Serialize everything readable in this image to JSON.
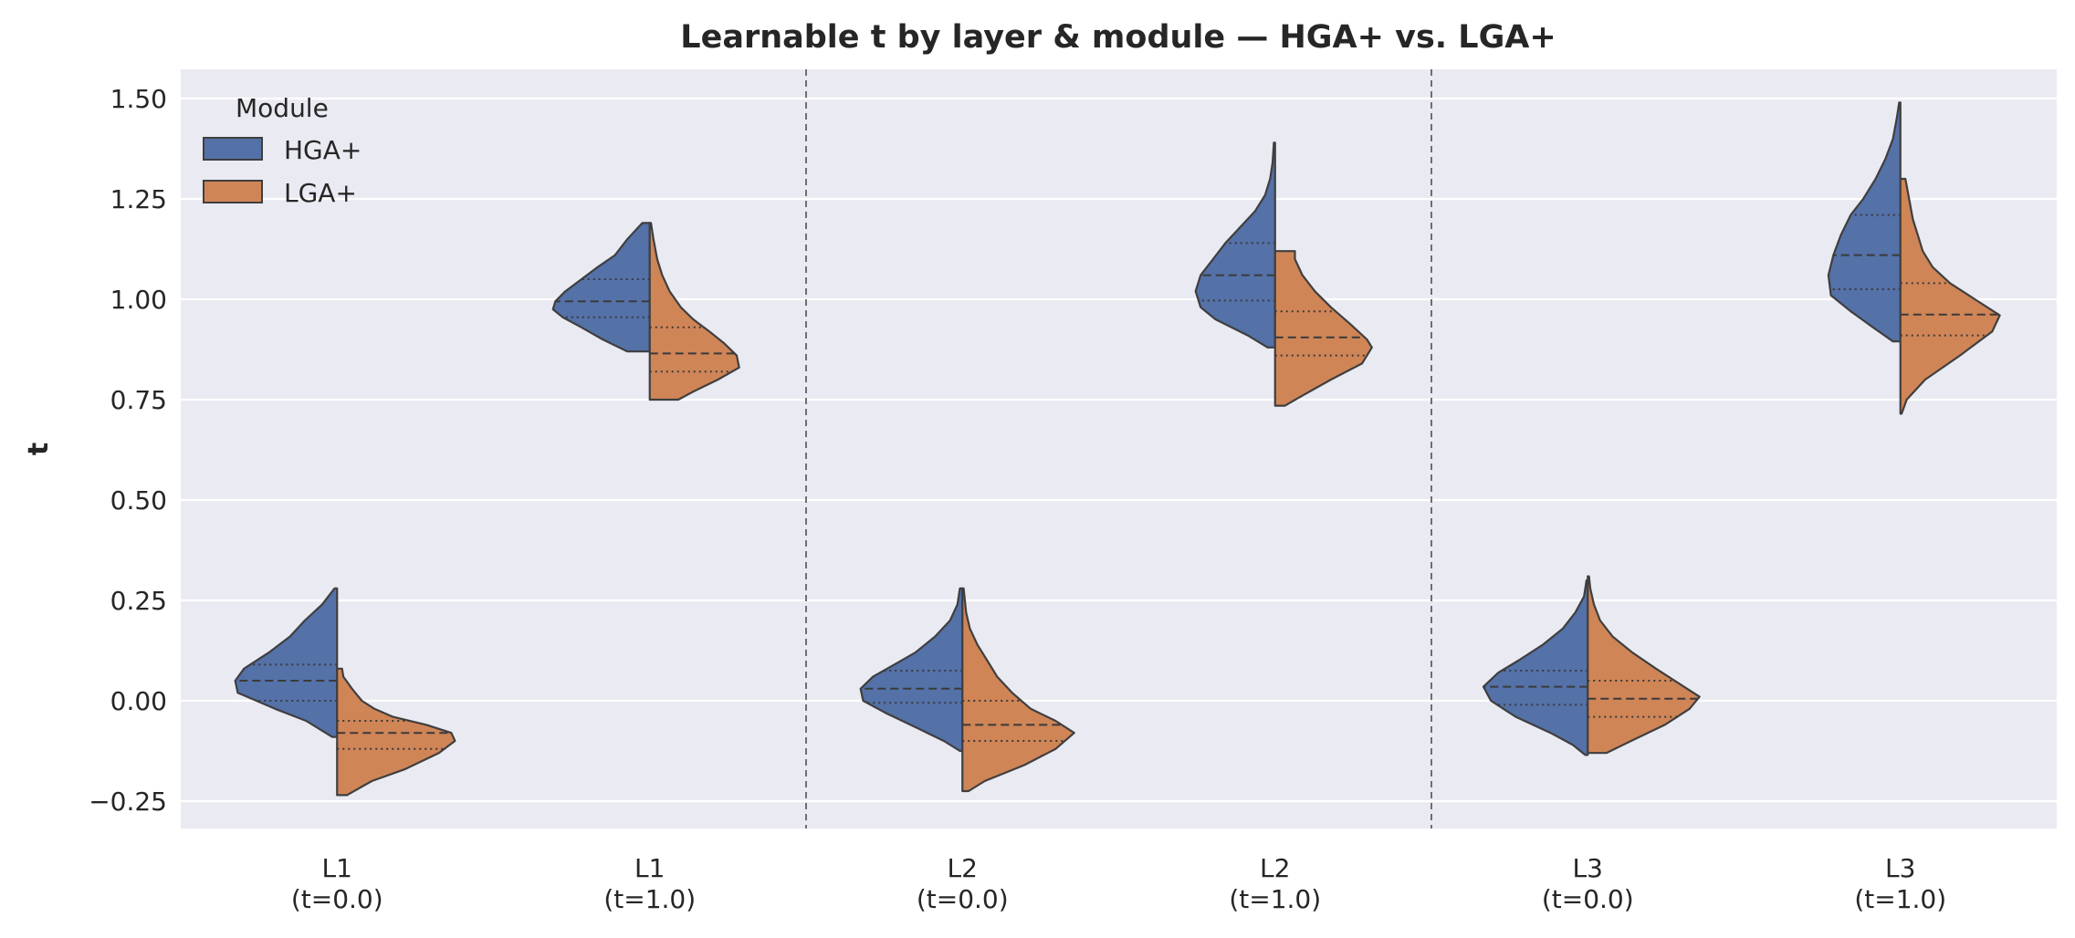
{
  "chart_data": {
    "type": "violin",
    "split": true,
    "title": "Learnable t by layer & module — HGA+ vs. LGA+",
    "xlabel": "",
    "ylabel": "t",
    "ylim": [
      -0.32,
      1.57
    ],
    "yticks": [
      -0.25,
      0.0,
      0.25,
      0.5,
      0.75,
      1.0,
      1.25,
      1.5
    ],
    "ytick_labels": [
      "−0.25",
      "0.00",
      "0.25",
      "0.50",
      "0.75",
      "1.00",
      "1.25",
      "1.50"
    ],
    "grid": true,
    "group_separators_after": [
      1,
      3
    ],
    "categories": [
      {
        "line1": "L1",
        "line2": "(t=0.0)"
      },
      {
        "line1": "L1",
        "line2": "(t=1.0)"
      },
      {
        "line1": "L2",
        "line2": "(t=0.0)"
      },
      {
        "line1": "L2",
        "line2": "(t=1.0)"
      },
      {
        "line1": "L3",
        "line2": "(t=0.0)"
      },
      {
        "line1": "L3",
        "line2": "(t=1.0)"
      }
    ],
    "legend": {
      "title": "Module",
      "placement": "top-left"
    },
    "series": [
      {
        "name": "HGA+",
        "color": "#5471a8",
        "side": "left",
        "violins": [
          {
            "min": -0.09,
            "max": 0.28,
            "q1": 0.0,
            "median": 0.05,
            "q3": 0.09,
            "profile": [
              [
                -0.09,
                0.04
              ],
              [
                -0.05,
                0.25
              ],
              [
                -0.02,
                0.5
              ],
              [
                0.02,
                0.8
              ],
              [
                0.05,
                0.82
              ],
              [
                0.08,
                0.75
              ],
              [
                0.12,
                0.55
              ],
              [
                0.16,
                0.38
              ],
              [
                0.2,
                0.26
              ],
              [
                0.24,
                0.12
              ],
              [
                0.28,
                0.02
              ]
            ]
          },
          {
            "min": 0.87,
            "max": 1.19,
            "q1": 0.955,
            "median": 0.995,
            "q3": 1.05,
            "profile": [
              [
                0.87,
                0.18
              ],
              [
                0.9,
                0.38
              ],
              [
                0.93,
                0.55
              ],
              [
                0.955,
                0.7
              ],
              [
                0.975,
                0.78
              ],
              [
                0.995,
                0.76
              ],
              [
                1.02,
                0.68
              ],
              [
                1.05,
                0.55
              ],
              [
                1.08,
                0.42
              ],
              [
                1.11,
                0.28
              ],
              [
                1.15,
                0.18
              ],
              [
                1.19,
                0.06
              ]
            ]
          },
          {
            "min": -0.125,
            "max": 0.28,
            "q1": -0.005,
            "median": 0.03,
            "q3": 0.075,
            "profile": [
              [
                -0.125,
                0.02
              ],
              [
                -0.1,
                0.15
              ],
              [
                -0.07,
                0.35
              ],
              [
                -0.03,
                0.62
              ],
              [
                0.0,
                0.8
              ],
              [
                0.03,
                0.82
              ],
              [
                0.06,
                0.72
              ],
              [
                0.09,
                0.55
              ],
              [
                0.12,
                0.38
              ],
              [
                0.16,
                0.22
              ],
              [
                0.2,
                0.1
              ],
              [
                0.24,
                0.04
              ],
              [
                0.28,
                0.02
              ]
            ]
          },
          {
            "min": 0.88,
            "max": 1.39,
            "q1": 0.997,
            "median": 1.06,
            "q3": 1.14,
            "profile": [
              [
                0.88,
                0.06
              ],
              [
                0.91,
                0.22
              ],
              [
                0.95,
                0.48
              ],
              [
                0.98,
                0.6
              ],
              [
                1.02,
                0.64
              ],
              [
                1.06,
                0.6
              ],
              [
                1.1,
                0.5
              ],
              [
                1.14,
                0.4
              ],
              [
                1.18,
                0.28
              ],
              [
                1.22,
                0.16
              ],
              [
                1.26,
                0.08
              ],
              [
                1.3,
                0.04
              ],
              [
                1.34,
                0.02
              ],
              [
                1.39,
                0.01
              ]
            ]
          },
          {
            "min": -0.135,
            "max": 0.3,
            "q1": -0.01,
            "median": 0.035,
            "q3": 0.075,
            "profile": [
              [
                -0.135,
                0.02
              ],
              [
                -0.11,
                0.12
              ],
              [
                -0.08,
                0.3
              ],
              [
                -0.04,
                0.58
              ],
              [
                0.0,
                0.78
              ],
              [
                0.035,
                0.84
              ],
              [
                0.07,
                0.72
              ],
              [
                0.1,
                0.56
              ],
              [
                0.14,
                0.36
              ],
              [
                0.18,
                0.2
              ],
              [
                0.22,
                0.1
              ],
              [
                0.26,
                0.03
              ],
              [
                0.3,
                0.01
              ]
            ]
          },
          {
            "min": 0.895,
            "max": 1.49,
            "q1": 1.025,
            "median": 1.11,
            "q3": 1.21,
            "profile": [
              [
                0.895,
                0.06
              ],
              [
                0.93,
                0.22
              ],
              [
                0.97,
                0.4
              ],
              [
                1.01,
                0.56
              ],
              [
                1.06,
                0.58
              ],
              [
                1.11,
                0.54
              ],
              [
                1.16,
                0.48
              ],
              [
                1.21,
                0.4
              ],
              [
                1.25,
                0.3
              ],
              [
                1.3,
                0.2
              ],
              [
                1.35,
                0.12
              ],
              [
                1.4,
                0.06
              ],
              [
                1.45,
                0.03
              ],
              [
                1.49,
                0.01
              ]
            ]
          }
        ]
      },
      {
        "name": "LGA+",
        "color": "#d08557",
        "side": "right",
        "violins": [
          {
            "min": -0.235,
            "max": 0.08,
            "q1": -0.12,
            "median": -0.08,
            "q3": -0.05,
            "profile": [
              [
                -0.235,
                0.08
              ],
              [
                -0.2,
                0.28
              ],
              [
                -0.17,
                0.55
              ],
              [
                -0.13,
                0.82
              ],
              [
                -0.1,
                0.95
              ],
              [
                -0.08,
                0.92
              ],
              [
                -0.06,
                0.72
              ],
              [
                -0.04,
                0.45
              ],
              [
                -0.02,
                0.3
              ],
              [
                0.0,
                0.2
              ],
              [
                0.03,
                0.12
              ],
              [
                0.06,
                0.05
              ],
              [
                0.08,
                0.04
              ]
            ]
          },
          {
            "min": 0.75,
            "max": 1.19,
            "q1": 0.82,
            "median": 0.865,
            "q3": 0.93,
            "profile": [
              [
                0.75,
                0.23
              ],
              [
                0.77,
                0.35
              ],
              [
                0.8,
                0.55
              ],
              [
                0.83,
                0.72
              ],
              [
                0.86,
                0.7
              ],
              [
                0.89,
                0.6
              ],
              [
                0.92,
                0.48
              ],
              [
                0.95,
                0.35
              ],
              [
                0.98,
                0.25
              ],
              [
                1.02,
                0.16
              ],
              [
                1.06,
                0.1
              ],
              [
                1.1,
                0.06
              ],
              [
                1.15,
                0.03
              ],
              [
                1.19,
                0.01
              ]
            ]
          },
          {
            "min": -0.225,
            "max": 0.28,
            "q1": -0.1,
            "median": -0.06,
            "q3": 0.0,
            "profile": [
              [
                -0.225,
                0.05
              ],
              [
                -0.2,
                0.18
              ],
              [
                -0.16,
                0.5
              ],
              [
                -0.12,
                0.75
              ],
              [
                -0.08,
                0.9
              ],
              [
                -0.05,
                0.75
              ],
              [
                -0.02,
                0.55
              ],
              [
                0.02,
                0.4
              ],
              [
                0.06,
                0.28
              ],
              [
                0.1,
                0.2
              ],
              [
                0.14,
                0.12
              ],
              [
                0.18,
                0.06
              ],
              [
                0.22,
                0.03
              ],
              [
                0.28,
                0.01
              ]
            ]
          },
          {
            "min": 0.735,
            "max": 1.12,
            "q1": 0.86,
            "median": 0.905,
            "q3": 0.97,
            "profile": [
              [
                0.735,
                0.08
              ],
              [
                0.76,
                0.22
              ],
              [
                0.8,
                0.45
              ],
              [
                0.84,
                0.7
              ],
              [
                0.88,
                0.78
              ],
              [
                0.9,
                0.74
              ],
              [
                0.94,
                0.6
              ],
              [
                0.98,
                0.45
              ],
              [
                1.02,
                0.32
              ],
              [
                1.06,
                0.22
              ],
              [
                1.1,
                0.16
              ],
              [
                1.12,
                0.16
              ]
            ]
          },
          {
            "min": -0.13,
            "max": 0.31,
            "q1": -0.04,
            "median": 0.005,
            "q3": 0.05,
            "profile": [
              [
                -0.13,
                0.15
              ],
              [
                -0.1,
                0.35
              ],
              [
                -0.06,
                0.62
              ],
              [
                -0.02,
                0.82
              ],
              [
                0.01,
                0.9
              ],
              [
                0.04,
                0.75
              ],
              [
                0.08,
                0.55
              ],
              [
                0.12,
                0.36
              ],
              [
                0.16,
                0.2
              ],
              [
                0.2,
                0.1
              ],
              [
                0.24,
                0.05
              ],
              [
                0.28,
                0.02
              ],
              [
                0.31,
                0.01
              ]
            ]
          },
          {
            "min": 0.715,
            "max": 1.3,
            "q1": 0.91,
            "median": 0.962,
            "q3": 1.04,
            "profile": [
              [
                0.715,
                0.01
              ],
              [
                0.75,
                0.05
              ],
              [
                0.8,
                0.2
              ],
              [
                0.86,
                0.48
              ],
              [
                0.92,
                0.74
              ],
              [
                0.96,
                0.8
              ],
              [
                1.0,
                0.6
              ],
              [
                1.04,
                0.4
              ],
              [
                1.08,
                0.26
              ],
              [
                1.12,
                0.18
              ],
              [
                1.16,
                0.14
              ],
              [
                1.2,
                0.1
              ],
              [
                1.25,
                0.07
              ],
              [
                1.3,
                0.04
              ]
            ]
          }
        ]
      }
    ]
  }
}
